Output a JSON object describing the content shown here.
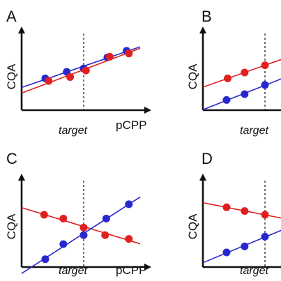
{
  "chart_data": [
    {
      "type": "scatter",
      "panel": "A",
      "ylabel": "CQA",
      "xlabel": "pCPP",
      "target_label": "target",
      "target_x": 0.5,
      "xlim": [
        0,
        1
      ],
      "ylim": [
        0,
        1
      ],
      "series": [
        {
          "color": "#2828d0",
          "x": [
            0.16,
            0.35,
            0.5,
            0.71,
            0.88
          ],
          "y": [
            0.4,
            0.5,
            0.55,
            0.72,
            0.82
          ]
        },
        {
          "color": "#e02020",
          "x": [
            0.19,
            0.38,
            0.52,
            0.73,
            0.9
          ],
          "y": [
            0.36,
            0.42,
            0.52,
            0.73,
            0.78
          ]
        }
      ]
    },
    {
      "type": "scatter",
      "panel": "B",
      "ylabel": "CQA",
      "xlabel": "",
      "target_label": "target",
      "target_x": 0.5,
      "xlim": [
        0,
        1
      ],
      "ylim": [
        0,
        1
      ],
      "series": [
        {
          "color": "#e02020",
          "x": [
            0.17,
            0.32,
            0.5
          ],
          "y": [
            0.4,
            0.49,
            0.6
          ]
        },
        {
          "color": "#2828d0",
          "x": [
            0.16,
            0.32,
            0.5
          ],
          "y": [
            0.07,
            0.16,
            0.3
          ]
        }
      ]
    },
    {
      "type": "scatter",
      "panel": "C",
      "ylabel": "CQA",
      "xlabel": "pCPP",
      "target_label": "target",
      "target_x": 0.5,
      "xlim": [
        0,
        1
      ],
      "ylim": [
        0,
        1
      ],
      "series": [
        {
          "color": "#e02020",
          "x": [
            0.15,
            0.32,
            0.5,
            0.69,
            0.9
          ],
          "y": [
            0.62,
            0.57,
            0.45,
            0.35,
            0.3
          ]
        },
        {
          "color": "#2828d0",
          "x": [
            0.16,
            0.32,
            0.5,
            0.7,
            0.9
          ],
          "y": [
            0.03,
            0.23,
            0.35,
            0.57,
            0.76
          ]
        }
      ]
    },
    {
      "type": "scatter",
      "panel": "D",
      "ylabel": "CQA",
      "xlabel": "",
      "target_label": "target",
      "target_x": 0.5,
      "xlim": [
        0,
        1
      ],
      "ylim": [
        0,
        1
      ],
      "series": [
        {
          "color": "#e02020",
          "x": [
            0.16,
            0.32,
            0.5
          ],
          "y": [
            0.72,
            0.67,
            0.62
          ]
        },
        {
          "color": "#2828d0",
          "x": [
            0.16,
            0.32,
            0.5
          ],
          "y": [
            0.12,
            0.2,
            0.33
          ]
        }
      ]
    }
  ]
}
